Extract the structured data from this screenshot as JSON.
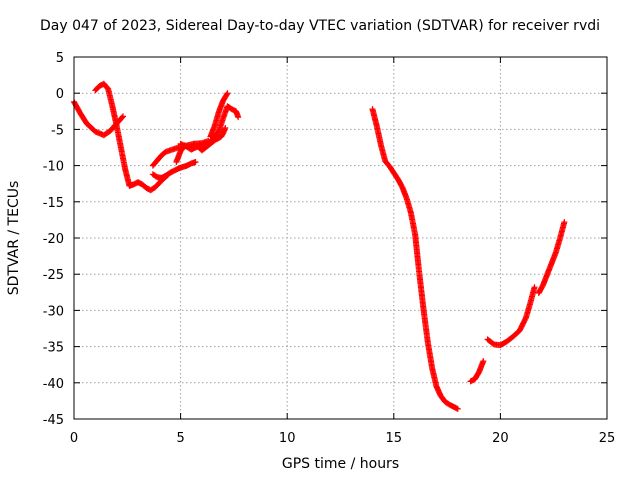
{
  "chart_data": {
    "type": "scatter",
    "title": "Day 047 of 2023, Sidereal Day-to-day VTEC variation (SDTVAR) for receiver rvdi",
    "xlabel": "GPS time / hours",
    "ylabel": "SDTVAR / TECUs",
    "xlim": [
      0,
      25
    ],
    "ylim": [
      -45,
      5
    ],
    "xticks": [
      0,
      5,
      10,
      15,
      20,
      25
    ],
    "yticks": [
      5,
      0,
      -5,
      -10,
      -15,
      -20,
      -25,
      -30,
      -35,
      -40,
      -45
    ],
    "grid": true,
    "marker": "+",
    "color": "#ff0000",
    "series": [
      {
        "x": [
          0.0,
          0.3,
          0.6,
          1.0,
          1.4,
          1.7,
          2.0,
          2.3
        ],
        "y": [
          -1.2,
          -2.8,
          -4.2,
          -5.3,
          -5.8,
          -5.2,
          -4.2,
          -3.2
        ]
      },
      {
        "x": [
          1.0,
          1.2,
          1.4,
          1.6,
          1.8,
          2.0,
          2.2,
          2.4,
          2.6,
          2.8,
          3.0,
          3.2,
          3.4,
          3.6,
          3.8,
          4.0,
          4.2,
          4.4
        ],
        "y": [
          0.4,
          1.0,
          1.3,
          0.6,
          -1.8,
          -4.5,
          -7.5,
          -10.5,
          -12.8,
          -12.6,
          -12.3,
          -12.6,
          -13.1,
          -13.4,
          -13.0,
          -12.4,
          -11.8,
          -11.3
        ]
      },
      {
        "x": [
          3.7,
          3.9,
          4.1,
          4.3,
          4.5,
          4.7,
          4.9,
          5.1,
          5.3,
          5.5,
          5.7
        ],
        "y": [
          -11.2,
          -11.6,
          -11.7,
          -11.4,
          -11.0,
          -10.7,
          -10.4,
          -10.2,
          -10.0,
          -9.7,
          -9.5
        ]
      },
      {
        "x": [
          3.7,
          3.9,
          4.1,
          4.3,
          4.6,
          4.9,
          5.2,
          5.6,
          6.0,
          6.3
        ],
        "y": [
          -10.0,
          -9.3,
          -8.6,
          -8.1,
          -7.8,
          -7.5,
          -7.3,
          -7.0,
          -6.9,
          -6.6
        ]
      },
      {
        "x": [
          4.8,
          5.0,
          5.2,
          5.5,
          5.8,
          6.0,
          6.3,
          6.6,
          6.9,
          7.0,
          7.1
        ],
        "y": [
          -9.5,
          -8.0,
          -7.2,
          -7.8,
          -7.3,
          -7.9,
          -7.2,
          -6.5,
          -6.0,
          -5.5,
          -4.8
        ]
      },
      {
        "x": [
          5.0,
          5.3,
          5.6,
          5.9,
          6.2,
          6.5,
          6.8,
          7.0,
          7.2,
          7.4,
          7.6,
          7.7
        ],
        "y": [
          -7.0,
          -7.4,
          -7.6,
          -7.3,
          -7.1,
          -6.4,
          -5.2,
          -3.4,
          -1.8,
          -2.2,
          -2.5,
          -3.3
        ]
      },
      {
        "x": [
          6.4,
          6.6,
          6.8,
          7.0,
          7.2
        ],
        "y": [
          -6.0,
          -4.5,
          -2.5,
          -1.0,
          0.0
        ]
      },
      {
        "x": [
          14.0,
          14.2,
          14.4,
          14.6,
          14.8,
          15.0,
          15.2,
          15.4,
          15.6,
          15.8,
          16.0,
          16.2,
          16.4,
          16.6,
          16.8,
          17.0,
          17.2,
          17.4,
          17.6,
          17.8,
          18.0
        ],
        "y": [
          -2.2,
          -4.5,
          -7.2,
          -9.4,
          -10.1,
          -11.0,
          -11.9,
          -13.0,
          -14.5,
          -16.5,
          -19.5,
          -25.0,
          -30.0,
          -34.5,
          -38.0,
          -40.5,
          -41.8,
          -42.6,
          -43.0,
          -43.3,
          -43.6
        ]
      },
      {
        "x": [
          18.6,
          18.8,
          19.0,
          19.2
        ],
        "y": [
          -39.8,
          -39.5,
          -38.5,
          -37.0
        ]
      },
      {
        "x": [
          19.4,
          19.7,
          20.0,
          20.3,
          20.6,
          20.9,
          21.2,
          21.4,
          21.6
        ],
        "y": [
          -34.0,
          -34.7,
          -34.8,
          -34.3,
          -33.6,
          -32.8,
          -31.0,
          -29.0,
          -26.8
        ]
      },
      {
        "x": [
          21.8,
          22.0,
          22.2,
          22.4,
          22.6,
          22.8,
          23.0
        ],
        "y": [
          -27.6,
          -26.5,
          -25.0,
          -23.5,
          -22.0,
          -20.0,
          -17.8
        ]
      }
    ]
  }
}
